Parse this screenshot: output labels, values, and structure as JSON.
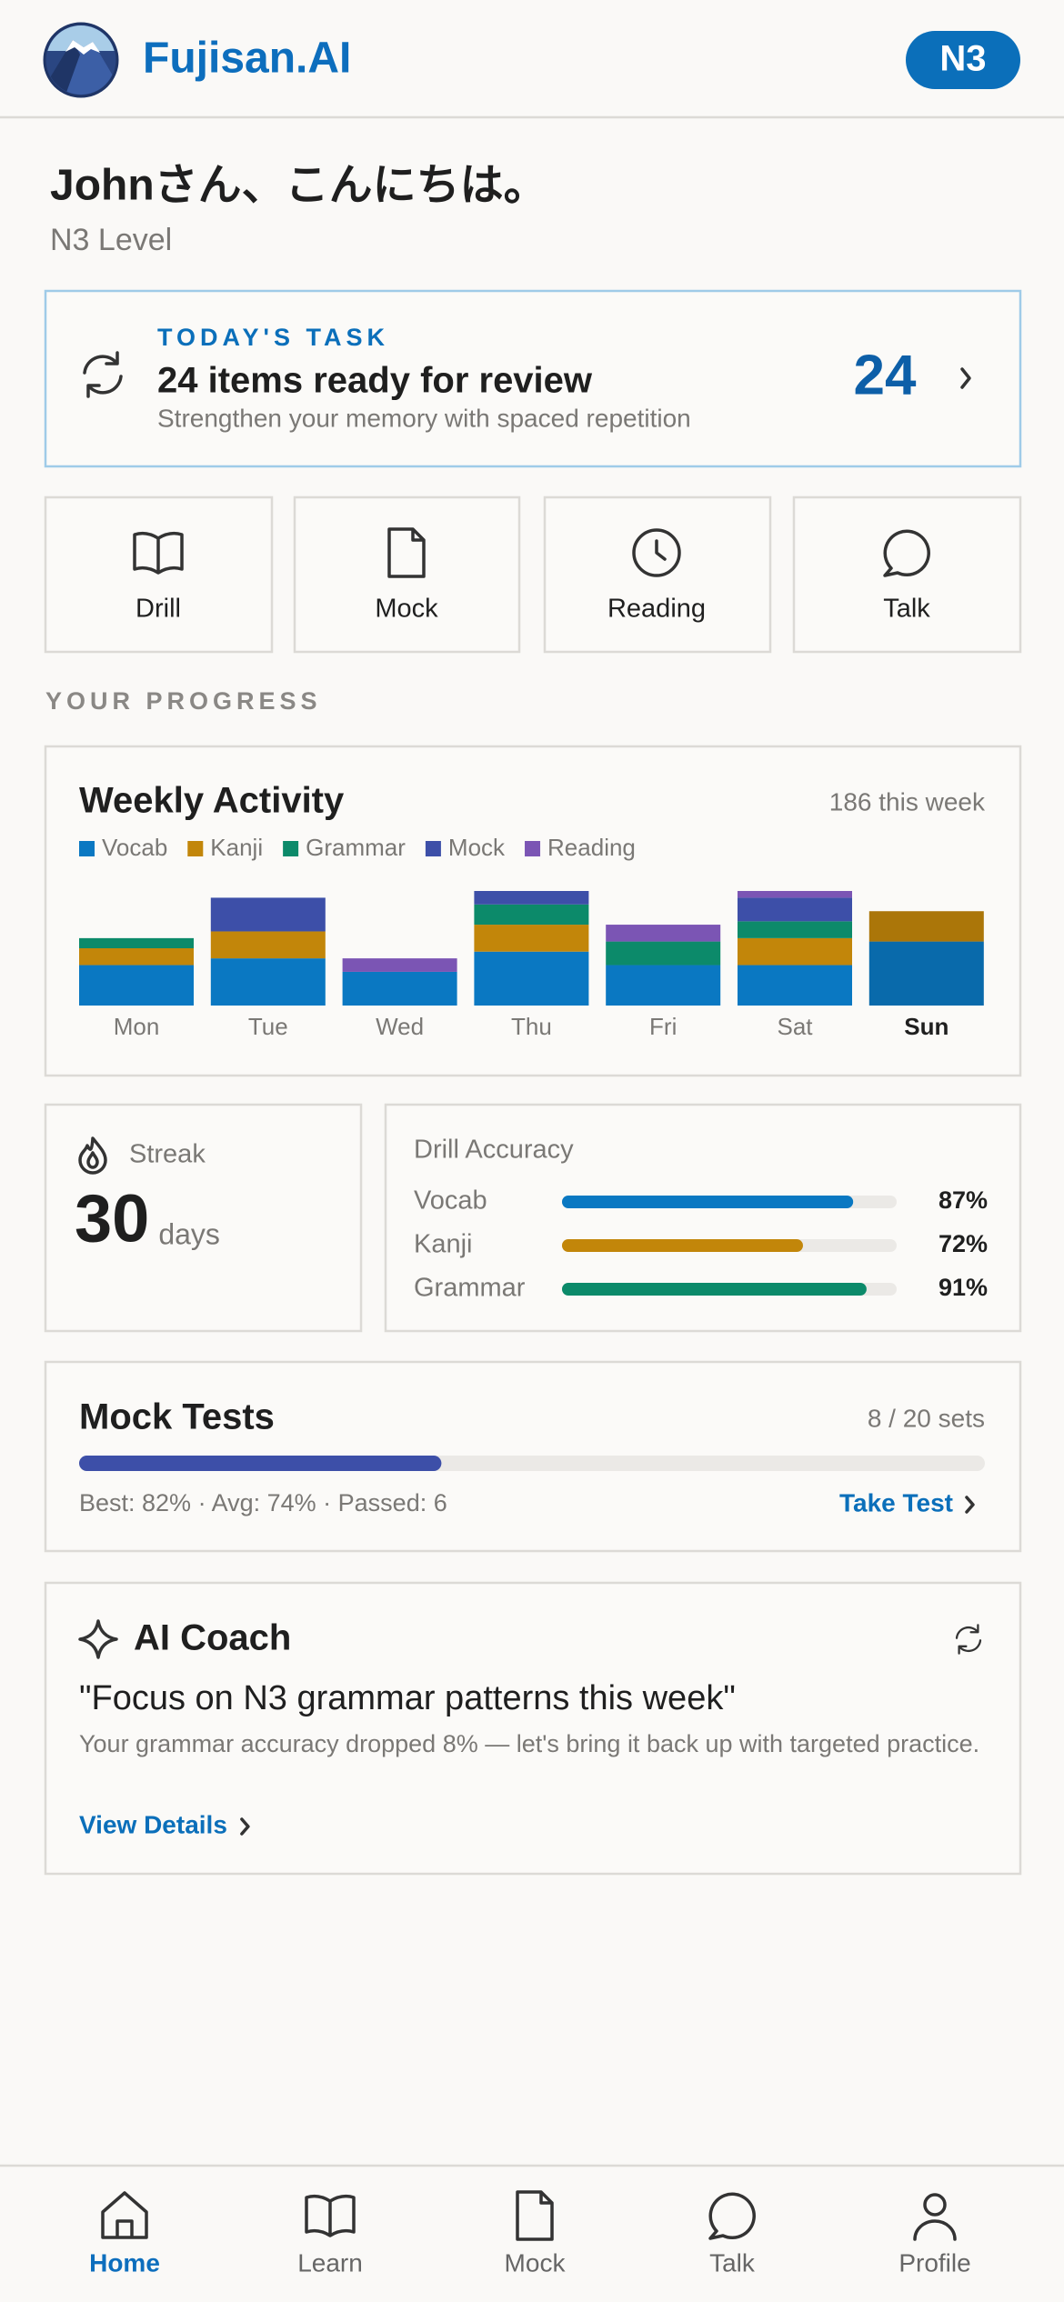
{
  "header": {
    "brand": "Fujisan.AI",
    "level_badge": "N3"
  },
  "greeting": {
    "title": "Johnさん、こんにちは。",
    "subtitle": "N3 Level"
  },
  "task": {
    "eyebrow": "TODAY'S TASK",
    "title": "24 items ready for review",
    "subtitle": "Strengthen your memory with spaced repetition",
    "count": 24
  },
  "actions": [
    {
      "label": "Drill"
    },
    {
      "label": "Mock"
    },
    {
      "label": "Reading"
    },
    {
      "label": "Talk"
    }
  ],
  "progress_heading": "YOUR PROGRESS",
  "chart_data": {
    "type": "stacked_bar",
    "title": "Weekly Activity",
    "subtitle": "186 this week",
    "categories": [
      "Mon",
      "Tue",
      "Wed",
      "Thu",
      "Fri",
      "Sat",
      "Sun"
    ],
    "series": [
      {
        "name": "Vocab",
        "color": "#0a78c2",
        "values": [
          12,
          14,
          10,
          16,
          12,
          12,
          19
        ]
      },
      {
        "name": "Kanji",
        "color": "#c2860a",
        "values": [
          5,
          8,
          0,
          8,
          0,
          8,
          9
        ]
      },
      {
        "name": "Grammar",
        "color": "#0c8a6a",
        "values": [
          3,
          0,
          0,
          6,
          7,
          5,
          0
        ]
      },
      {
        "name": "Mock",
        "color": "#3d4fa8",
        "values": [
          0,
          10,
          0,
          4,
          0,
          7,
          0
        ]
      },
      {
        "name": "Reading",
        "color": "#7b55b4",
        "values": [
          0,
          0,
          4,
          0,
          5,
          2,
          0
        ]
      }
    ],
    "highlight_index": 6
  },
  "streak": {
    "label": "Streak",
    "value": 30,
    "unit": "days"
  },
  "accuracy": {
    "type": "bar",
    "title": "Drill Accuracy",
    "categories": [
      "Vocab",
      "Kanji",
      "Grammar"
    ],
    "values": [
      87,
      72,
      91
    ],
    "value_labels": [
      "87%",
      "72%",
      "91%"
    ],
    "colors": [
      "#0a78c2",
      "#c2860a",
      "#0c8a6a"
    ],
    "xlim": [
      0,
      100
    ]
  },
  "mock_tests": {
    "title": "Mock Tests",
    "sets_label": "8 / 20 sets",
    "completed": 8,
    "total": 20,
    "stats": "Best: 82% · Avg: 74% · Passed: 6",
    "action": "Take Test"
  },
  "ai_coach": {
    "title": "AI Coach",
    "quote": "\"Focus on N3 grammar patterns this week\"",
    "message": "Your grammar accuracy dropped 8% — let's bring it back up with targeted practice.",
    "action": "View Details"
  },
  "nav": [
    {
      "label": "Home",
      "active": true
    },
    {
      "label": "Learn",
      "active": false
    },
    {
      "label": "Mock",
      "active": false
    },
    {
      "label": "Talk",
      "active": false
    },
    {
      "label": "Profile",
      "active": false
    }
  ]
}
